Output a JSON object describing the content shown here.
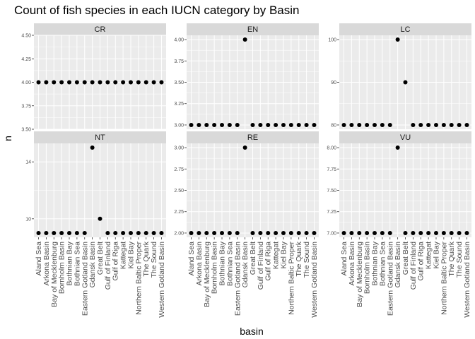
{
  "chart_data": {
    "type": "scatter",
    "title": "Count of fish species in each IUCN category by Basin",
    "xlabel": "basin",
    "ylabel": "n",
    "categories": [
      "Aland Sea",
      "Arkona Basin",
      "Bay of Mecklenburg",
      "Bornholm Basin",
      "Bothnian Bay",
      "Bothnian Sea",
      "Eastern Gotland Basin",
      "Gdansk Basin",
      "Great Belt",
      "Gulf of Finland",
      "Gulf of Riga",
      "Kattegat",
      "Kiel Bay",
      "Northern Baltic Proper",
      "The Quark",
      "The Sound",
      "Western Gotland Basin"
    ],
    "facets": [
      {
        "name": "CR",
        "ylim": [
          3.5,
          4.5
        ],
        "yticks": [
          "3.50",
          "3.75",
          "4.00",
          "4.25",
          "4.50"
        ],
        "values": [
          4,
          4,
          4,
          4,
          4,
          4,
          4,
          4,
          4,
          4,
          4,
          4,
          4,
          4,
          4,
          4,
          4
        ]
      },
      {
        "name": "EN",
        "ylim": [
          2.95,
          4.05
        ],
        "yticks": [
          "3.00",
          "3.25",
          "3.50",
          "3.75",
          "4.00"
        ],
        "values": [
          3,
          3,
          3,
          3,
          3,
          3,
          3,
          4,
          3,
          3,
          3,
          3,
          3,
          3,
          3,
          3,
          3
        ]
      },
      {
        "name": "LC",
        "ylim": [
          79,
          101
        ],
        "yticks": [
          "80",
          "90",
          "100"
        ],
        "values": [
          80,
          80,
          80,
          80,
          80,
          80,
          80,
          100,
          90,
          80,
          80,
          80,
          80,
          80,
          80,
          80,
          80
        ]
      },
      {
        "name": "NT",
        "ylim": [
          8.7,
          15.3
        ],
        "yticks": [
          "10",
          "14"
        ],
        "values": [
          9,
          9,
          9,
          9,
          9,
          9,
          9,
          15,
          10,
          9,
          9,
          9,
          9,
          9,
          9,
          9,
          9
        ]
      },
      {
        "name": "RE",
        "ylim": [
          1.95,
          3.05
        ],
        "yticks": [
          "2.00",
          "2.25",
          "2.50",
          "2.75",
          "3.00"
        ],
        "values": [
          2,
          2,
          2,
          2,
          2,
          2,
          2,
          3,
          2,
          2,
          2,
          2,
          2,
          2,
          2,
          2,
          2
        ]
      },
      {
        "name": "VU",
        "ylim": [
          6.95,
          8.05
        ],
        "yticks": [
          "7.00",
          "7.25",
          "7.50",
          "7.75",
          "8.00"
        ],
        "values": [
          7,
          7,
          7,
          7,
          7,
          7,
          7,
          8,
          7,
          7,
          7,
          7,
          7,
          7,
          7,
          7,
          7
        ]
      }
    ],
    "grid": true,
    "colors": {
      "panel_background": "#ebebeb",
      "strip_background": "#d9d9d9",
      "grid": "#ffffff",
      "point": "#000000"
    }
  }
}
